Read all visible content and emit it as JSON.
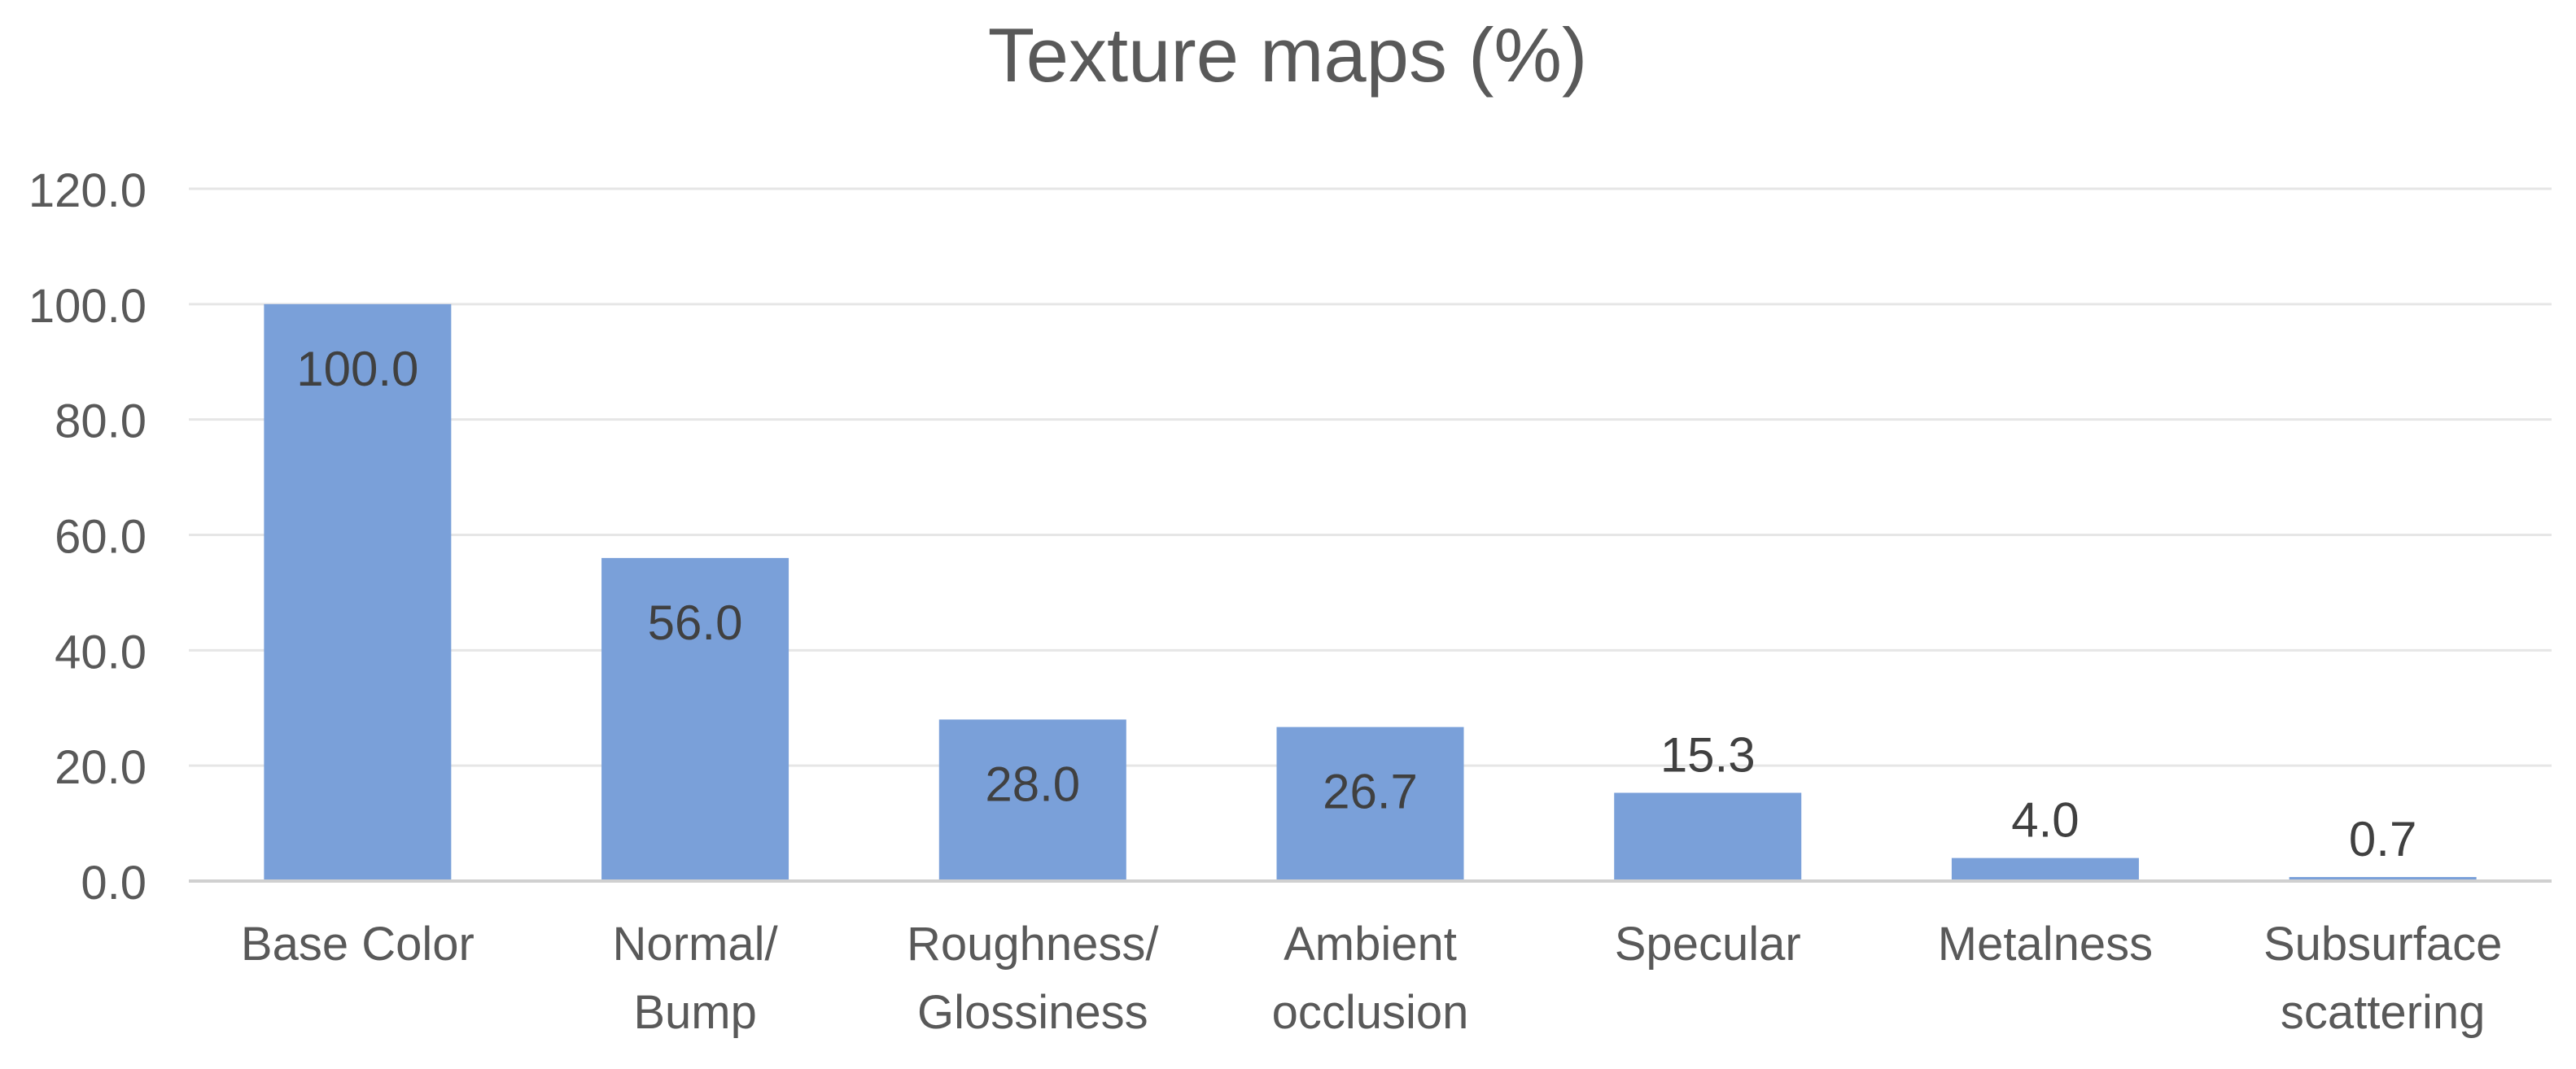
{
  "chart_data": {
    "type": "bar",
    "title": "Texture maps (%)",
    "xlabel": "",
    "ylabel": "",
    "categories": [
      [
        "Base Color"
      ],
      [
        "Normal/",
        "Bump"
      ],
      [
        "Roughness/",
        "Glossiness"
      ],
      [
        "Ambient",
        "occlusion"
      ],
      [
        "Specular"
      ],
      [
        "Metalness"
      ],
      [
        "Subsurface",
        "scattering"
      ]
    ],
    "values": [
      100.0,
      56.0,
      28.0,
      26.7,
      15.3,
      4.0,
      0.7
    ],
    "data_labels": [
      "100.0",
      "56.0",
      "28.0",
      "26.7",
      "15.3",
      "4.0",
      "0.7"
    ],
    "ylim": [
      0,
      120
    ],
    "yticks": [
      "0.0",
      "20.0",
      "40.0",
      "60.0",
      "80.0",
      "100.0",
      "120.0"
    ],
    "grid": true,
    "legend": "none",
    "colors": {
      "bar": "#7aa0d9",
      "grid": "#e6e6e6",
      "axis": "#d0d0d0",
      "text": "#595959",
      "label": "#404040"
    }
  }
}
